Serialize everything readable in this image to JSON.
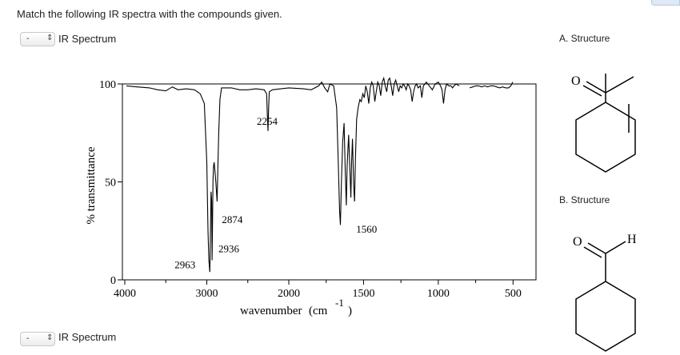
{
  "question": "Match the following IR spectra with the compounds given.",
  "matches": [
    {
      "selected": "-",
      "label": "IR Spectrum"
    },
    {
      "selected": "-",
      "label": "IR Spectrum"
    }
  ],
  "structures": [
    {
      "label": "A. Structure",
      "icon": "cyclohexenyl-methyl-ketone"
    },
    {
      "label": "B. Structure",
      "icon": "cyclohexanecarbaldehyde",
      "atoms": {
        "oxygen": "O",
        "hydrogen": "H"
      }
    }
  ],
  "chart_data": {
    "type": "line",
    "xlabel": "wavenumber",
    "xlabel_unit": "(cm",
    "xlabel_exp": "-1",
    "xlabel_close": ")",
    "ylabel": "% transmittance",
    "xlim": [
      4000,
      400
    ],
    "ylim": [
      0,
      100
    ],
    "xticks": [
      4000,
      3000,
      2000,
      1500,
      1000,
      500
    ],
    "yticks": [
      0,
      50,
      100
    ],
    "annotations": [
      {
        "text": "2963",
        "x": 2963,
        "y": 6
      },
      {
        "text": "2936",
        "x": 2936,
        "y": 14
      },
      {
        "text": "2874",
        "x": 2874,
        "y": 29
      },
      {
        "text": "2254",
        "x": 2254,
        "y": 76
      },
      {
        "text": "1560",
        "x": 1560,
        "y": 24
      }
    ],
    "series": [
      {
        "points": [
          [
            3980,
            99
          ],
          [
            3850,
            98.5
          ],
          [
            3700,
            98
          ],
          [
            3600,
            97
          ],
          [
            3500,
            96.5
          ],
          [
            3420,
            98.5
          ],
          [
            3350,
            97
          ],
          [
            3250,
            97.5
          ],
          [
            3150,
            97
          ],
          [
            3080,
            95
          ],
          [
            3030,
            90
          ],
          [
            3000,
            60
          ],
          [
            2985,
            25
          ],
          [
            2975,
            10
          ],
          [
            2963,
            4
          ],
          [
            2955,
            25
          ],
          [
            2948,
            45
          ],
          [
            2940,
            40
          ],
          [
            2936,
            10
          ],
          [
            2930,
            30
          ],
          [
            2925,
            50
          ],
          [
            2918,
            58
          ],
          [
            2910,
            60
          ],
          [
            2900,
            55
          ],
          [
            2890,
            50
          ],
          [
            2882,
            45
          ],
          [
            2874,
            40
          ],
          [
            2866,
            55
          ],
          [
            2855,
            75
          ],
          [
            2840,
            92
          ],
          [
            2820,
            98
          ],
          [
            2700,
            98
          ],
          [
            2600,
            97
          ],
          [
            2500,
            97
          ],
          [
            2400,
            97.5
          ],
          [
            2300,
            97
          ],
          [
            2270,
            95
          ],
          [
            2262,
            85
          ],
          [
            2254,
            76
          ],
          [
            2246,
            88
          ],
          [
            2238,
            96
          ],
          [
            2200,
            97
          ],
          [
            2100,
            97.5
          ],
          [
            2000,
            98
          ],
          [
            1900,
            97.5
          ],
          [
            1850,
            97
          ],
          [
            1800,
            99
          ],
          [
            1780,
            101
          ],
          [
            1760,
            98
          ],
          [
            1740,
            96
          ],
          [
            1725,
            100
          ],
          [
            1700,
            99
          ],
          [
            1680,
            88
          ],
          [
            1670,
            62
          ],
          [
            1660,
            35
          ],
          [
            1655,
            28
          ],
          [
            1648,
            50
          ],
          [
            1640,
            70
          ],
          [
            1630,
            80
          ],
          [
            1622,
            55
          ],
          [
            1615,
            38
          ],
          [
            1610,
            58
          ],
          [
            1600,
            74
          ],
          [
            1592,
            58
          ],
          [
            1585,
            42
          ],
          [
            1580,
            60
          ],
          [
            1574,
            72
          ],
          [
            1566,
            48
          ],
          [
            1560,
            40
          ],
          [
            1554,
            62
          ],
          [
            1546,
            82
          ],
          [
            1536,
            88
          ],
          [
            1525,
            92
          ],
          [
            1515,
            91
          ],
          [
            1505,
            95
          ],
          [
            1495,
            93
          ],
          [
            1485,
            99
          ],
          [
            1475,
            96
          ],
          [
            1465,
            90
          ],
          [
            1455,
            98
          ],
          [
            1445,
            101
          ],
          [
            1435,
            99
          ],
          [
            1425,
            91
          ],
          [
            1415,
            96
          ],
          [
            1405,
            101
          ],
          [
            1395,
            99
          ],
          [
            1385,
            94
          ],
          [
            1375,
            101
          ],
          [
            1365,
            103
          ],
          [
            1355,
            99
          ],
          [
            1345,
            96
          ],
          [
            1335,
            102
          ],
          [
            1325,
            103
          ],
          [
            1315,
            99
          ],
          [
            1305,
            94
          ],
          [
            1295,
            100
          ],
          [
            1285,
            102
          ],
          [
            1275,
            99
          ],
          [
            1265,
            96
          ],
          [
            1255,
            99
          ],
          [
            1245,
            98
          ],
          [
            1235,
            100
          ],
          [
            1225,
            99
          ],
          [
            1215,
            97
          ],
          [
            1205,
            100
          ],
          [
            1195,
            99
          ],
          [
            1185,
            97
          ],
          [
            1175,
            91
          ],
          [
            1165,
            96
          ],
          [
            1155,
            99
          ],
          [
            1145,
            100
          ],
          [
            1135,
            98
          ],
          [
            1120,
            99
          ],
          [
            1110,
            93
          ],
          [
            1100,
            99
          ],
          [
            1080,
            101
          ],
          [
            1060,
            99
          ],
          [
            1040,
            97
          ],
          [
            1020,
            100
          ],
          [
            1000,
            101
          ],
          [
            985,
            99
          ],
          [
            975,
            97
          ],
          [
            965,
            90
          ],
          [
            955,
            97
          ],
          [
            945,
            100
          ],
          [
            930,
            99
          ],
          [
            915,
            99
          ],
          [
            905,
            98
          ],
          [
            895,
            99
          ],
          [
            880,
            100
          ],
          [
            860,
            99
          ]
        ]
      },
      {
        "points": [
          [
            790,
            98
          ],
          [
            770,
            98.5
          ],
          [
            750,
            99
          ],
          [
            730,
            99
          ],
          [
            710,
            98.5
          ],
          [
            690,
            99
          ],
          [
            670,
            98.5
          ],
          [
            650,
            99
          ],
          [
            630,
            99
          ],
          [
            610,
            98.5
          ],
          [
            590,
            98
          ],
          [
            570,
            98.5
          ],
          [
            550,
            98
          ],
          [
            530,
            98
          ],
          [
            515,
            99
          ],
          [
            508,
            100
          ],
          [
            502,
            101
          ]
        ]
      }
    ]
  }
}
